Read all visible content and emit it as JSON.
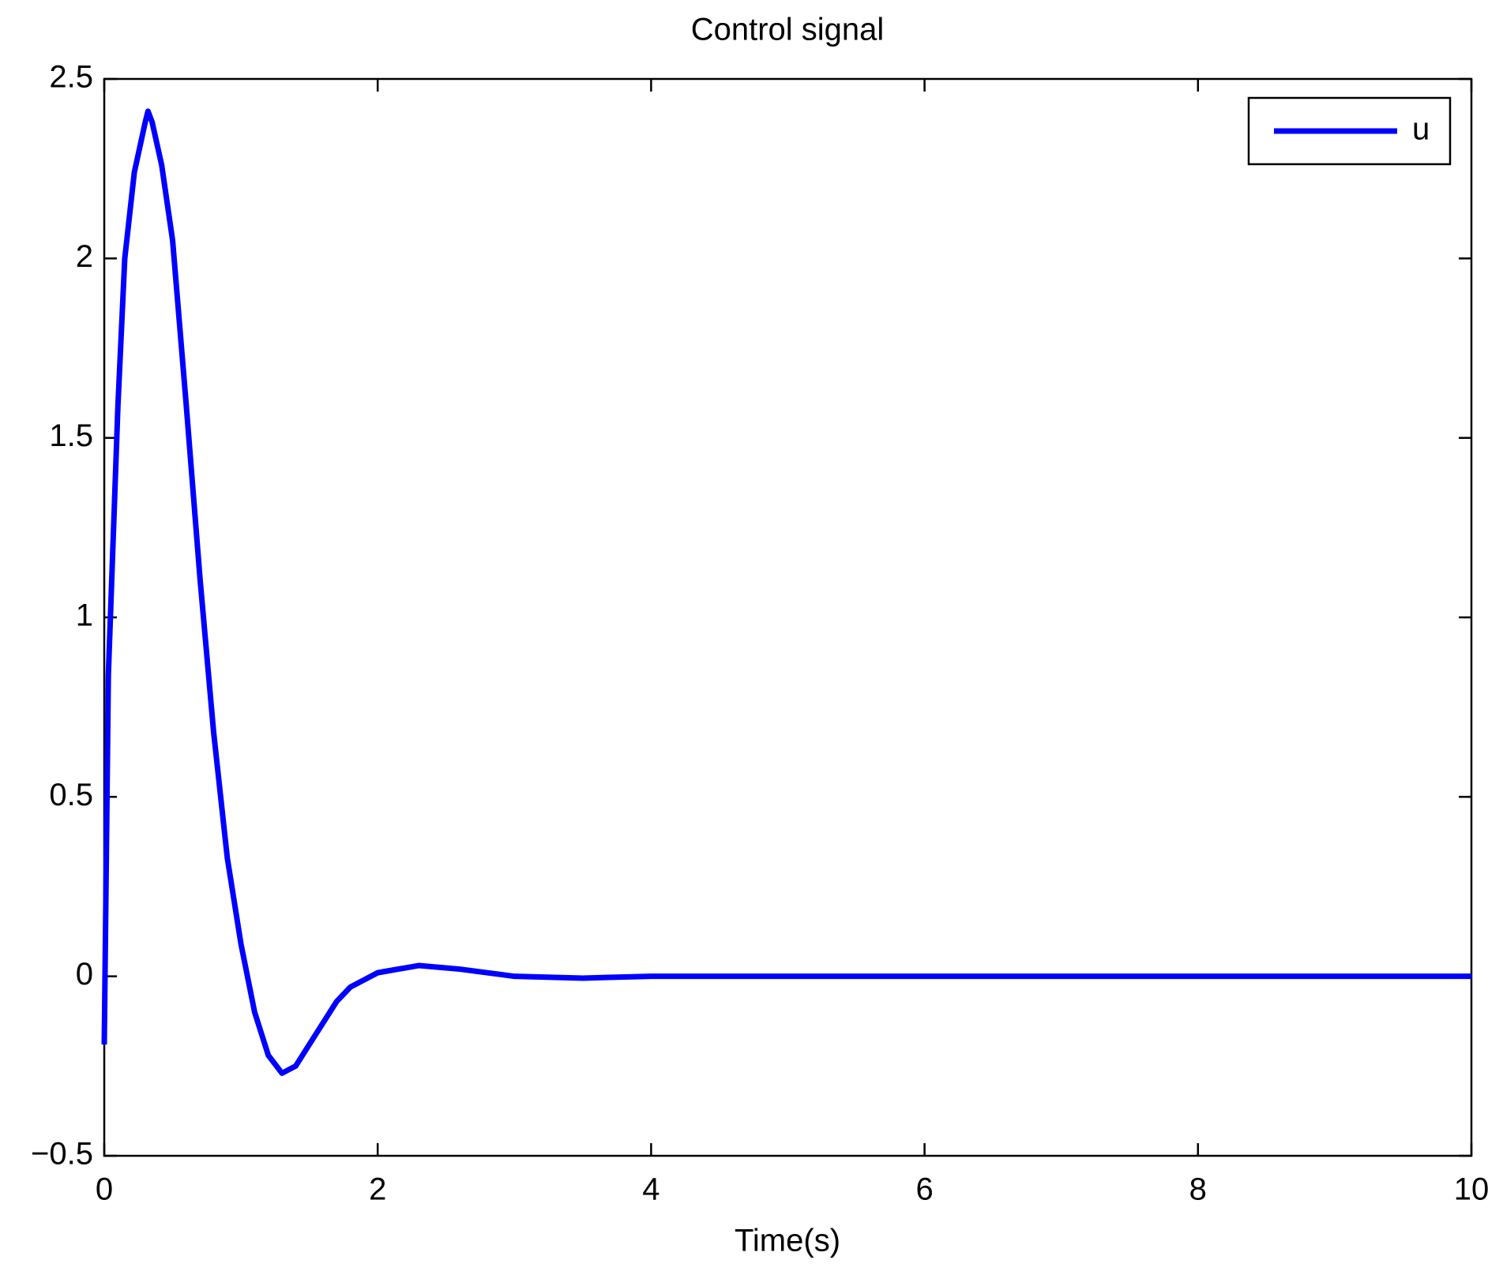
{
  "chart_data": {
    "type": "line",
    "title": "Control signal",
    "x_label": "Time(s)",
    "x": [
      0,
      0.03,
      0.1,
      0.15,
      0.22,
      0.3,
      0.32,
      0.35,
      0.42,
      0.5,
      0.6,
      0.7,
      0.8,
      0.9,
      1.0,
      1.1,
      1.2,
      1.3,
      1.4,
      1.5,
      1.6,
      1.7,
      1.8,
      2.0,
      2.3,
      2.6,
      3.0,
      3.5,
      4,
      10
    ],
    "series": [
      {
        "name": "u",
        "color": "#0000ff",
        "values": [
          -0.19,
          0.84,
          1.59,
          2.0,
          2.24,
          2.38,
          2.41,
          2.38,
          2.26,
          2.05,
          1.59,
          1.11,
          0.68,
          0.33,
          0.09,
          -0.1,
          -0.22,
          -0.27,
          -0.25,
          -0.19,
          -0.13,
          -0.07,
          -0.03,
          0.01,
          0.03,
          0.02,
          0.0,
          -0.005,
          0,
          0
        ]
      }
    ],
    "xlim": [
      0,
      10
    ],
    "xticks": [
      0,
      2,
      4,
      6,
      8,
      10
    ],
    "ylim": [
      -0.5,
      2.5
    ],
    "yticks": [
      {
        "value": -0.5,
        "label": "−0.5"
      },
      0,
      0.5,
      1,
      1.5,
      2,
      2.5
    ],
    "legend": "upper right",
    "grid": false
  }
}
